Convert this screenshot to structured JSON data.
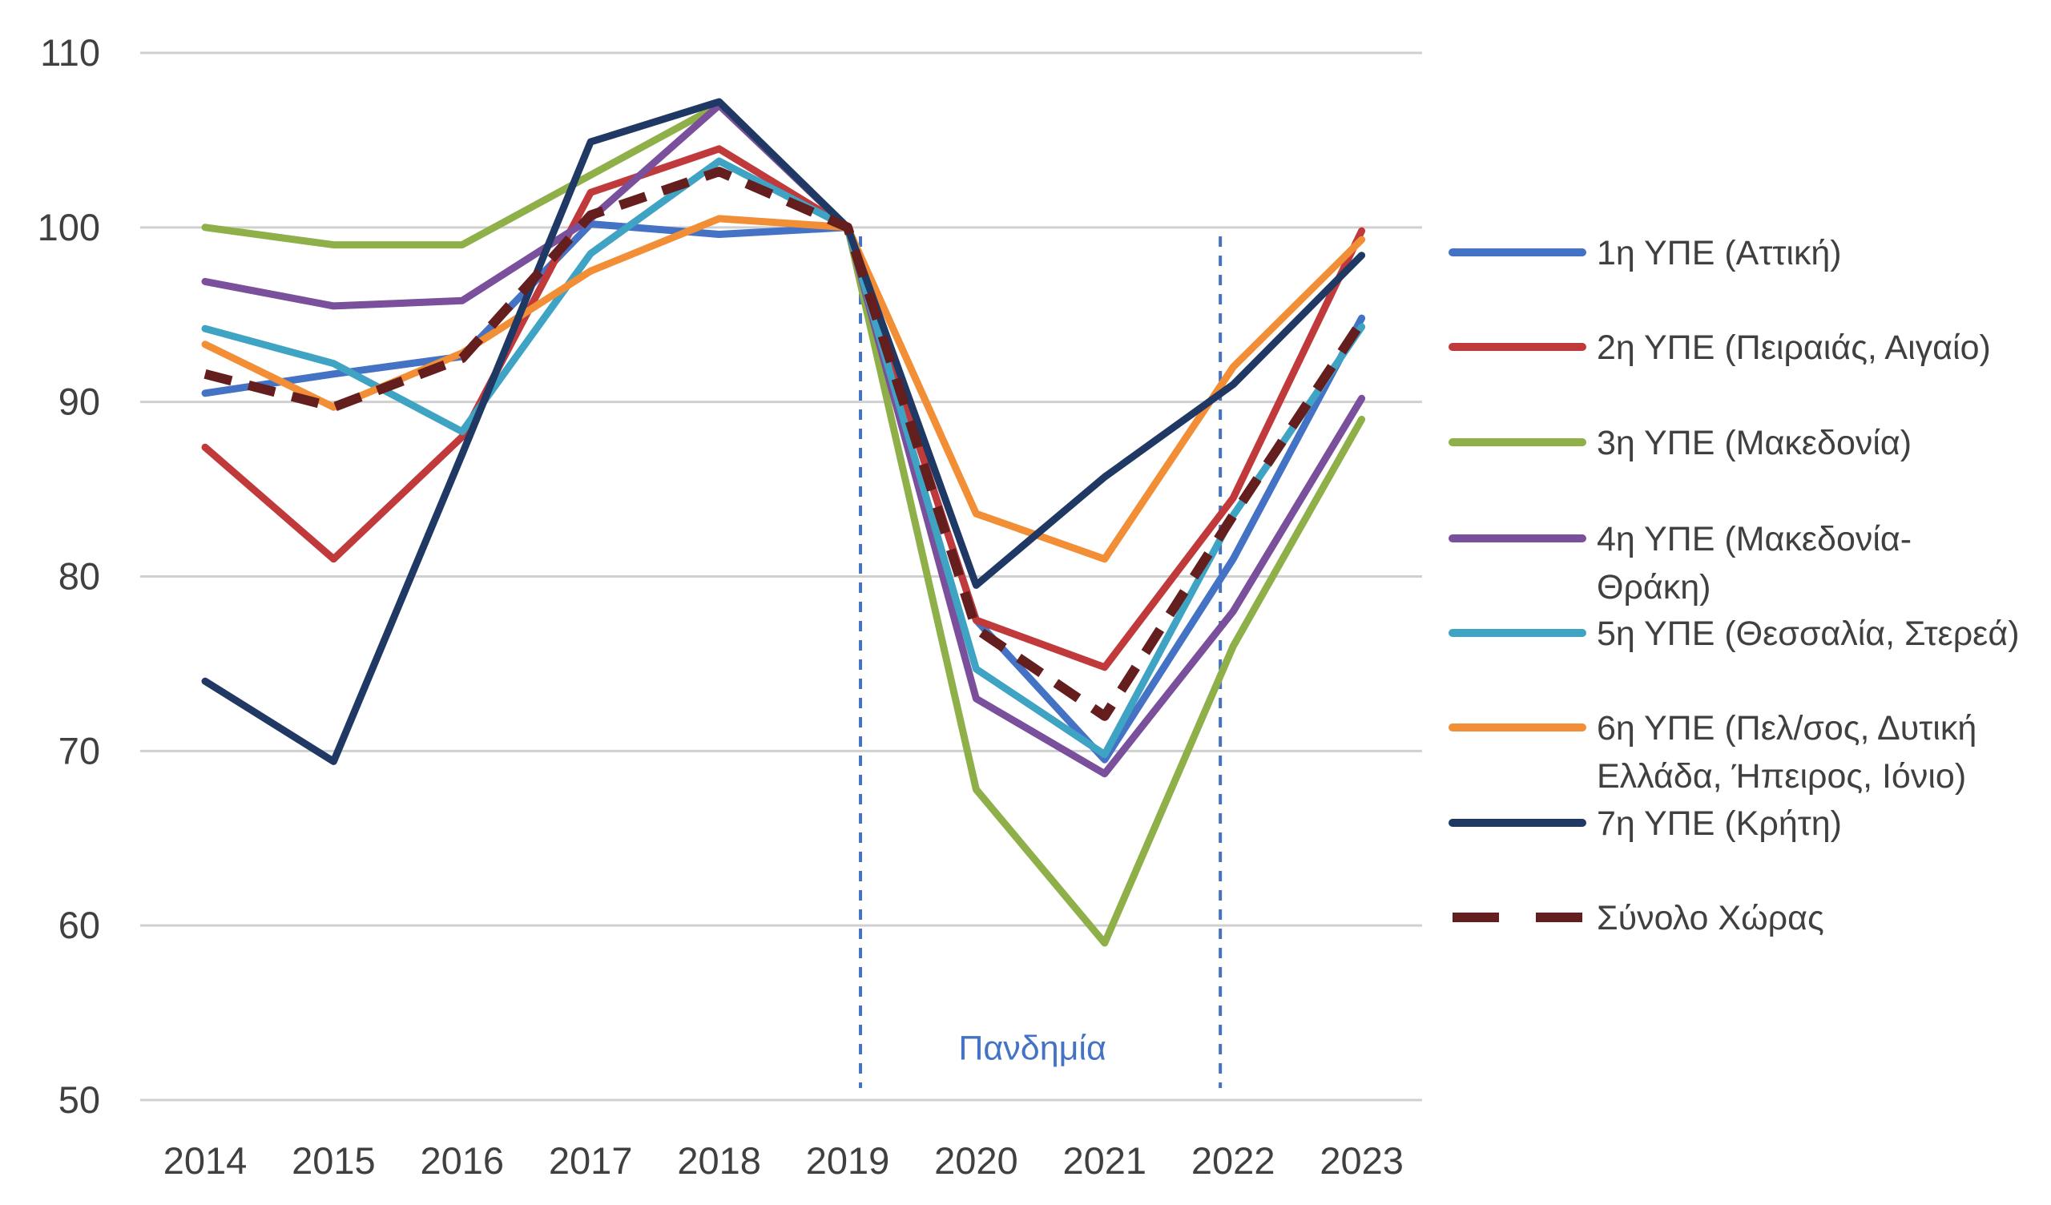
{
  "chart_data": {
    "type": "line",
    "title": "",
    "xlabel": "",
    "ylabel": "",
    "categories": [
      "2014",
      "2015",
      "2016",
      "2017",
      "2018",
      "2019",
      "2020",
      "2021",
      "2022",
      "2023"
    ],
    "ylim": [
      50,
      110
    ],
    "yticks": [
      50,
      60,
      70,
      80,
      90,
      100,
      110
    ],
    "grid": true,
    "legend_position": "right",
    "series": [
      {
        "name": "1η ΥΠΕ (Αττική)",
        "legend_lines": [
          "1η ΥΠΕ (Αττική)"
        ],
        "color": "#4472C4",
        "style": "solid",
        "values": [
          90.5,
          91.6,
          92.6,
          100.2,
          99.6,
          100,
          77.5,
          69.5,
          81,
          94.8
        ]
      },
      {
        "name": "2η ΥΠΕ (Πειραιάς, Αιγαίο)",
        "legend_lines": [
          "2η ΥΠΕ (Πειραιάς, Αιγαίο)"
        ],
        "color": "#C0393B",
        "style": "solid",
        "values": [
          87.4,
          81,
          88,
          102,
          104.5,
          100,
          77.5,
          74.8,
          84.5,
          99.8
        ]
      },
      {
        "name": "3η ΥΠΕ (Μακεδονία)",
        "legend_lines": [
          "3η ΥΠΕ (Μακεδονία)"
        ],
        "color": "#8FB049",
        "style": "solid",
        "values": [
          100,
          99,
          99,
          103,
          107,
          100,
          67.8,
          59,
          76,
          89
        ]
      },
      {
        "name": "4η ΥΠΕ (Μακεδονία-Θράκη)",
        "legend_lines": [
          "4η ΥΠΕ (Μακεδονία-",
          "Θράκη)"
        ],
        "color": "#7A4F9B",
        "style": "solid",
        "values": [
          96.9,
          95.5,
          95.8,
          100.5,
          107,
          100,
          73,
          68.7,
          78,
          90.2
        ]
      },
      {
        "name": "5η ΥΠΕ (Θεσσαλία, Στερεά)",
        "legend_lines": [
          "5η ΥΠΕ (Θεσσαλία, Στερεά)"
        ],
        "color": "#3FA3C4",
        "style": "solid",
        "values": [
          94.2,
          92.2,
          88.3,
          98.5,
          103.8,
          100,
          74.7,
          69.8,
          83.5,
          94.3
        ]
      },
      {
        "name": "6η ΥΠΕ (Πελ/σος, Δυτική Ελλάδα, Ήπειρος, Ιόνιο)",
        "legend_lines": [
          "6η ΥΠΕ (Πελ/σος, Δυτική",
          "Ελλάδα, Ήπειρος, Ιόνιο)"
        ],
        "color": "#F28E36",
        "style": "solid",
        "values": [
          93.3,
          89.7,
          92.8,
          97.5,
          100.5,
          100,
          83.6,
          81,
          92,
          99.3
        ]
      },
      {
        "name": "7η ΥΠΕ (Κρήτη)",
        "legend_lines": [
          "7η ΥΠΕ (Κρήτη)"
        ],
        "color": "#1F3864",
        "style": "solid",
        "values": [
          74,
          69.4,
          87,
          104.9,
          107.2,
          100,
          79.5,
          85.7,
          91,
          98.4
        ]
      },
      {
        "name": "Σύνολο Χώρας",
        "legend_lines": [
          "Σύνολο Χώρας"
        ],
        "color": "#641E1E",
        "style": "dashed",
        "values": [
          91.6,
          89.7,
          92.5,
          100.7,
          103.2,
          100,
          77,
          72,
          83.5,
          94.6
        ]
      }
    ],
    "annotations": [
      {
        "type": "vertical-dashed-line",
        "x": 2019.1,
        "color": "#4472C4"
      },
      {
        "type": "vertical-dashed-line",
        "x": 2021.9,
        "color": "#4472C4"
      },
      {
        "type": "text",
        "text": "Πανδημία",
        "x": 2020.5,
        "y": 53,
        "color": "#4472C4"
      }
    ]
  }
}
